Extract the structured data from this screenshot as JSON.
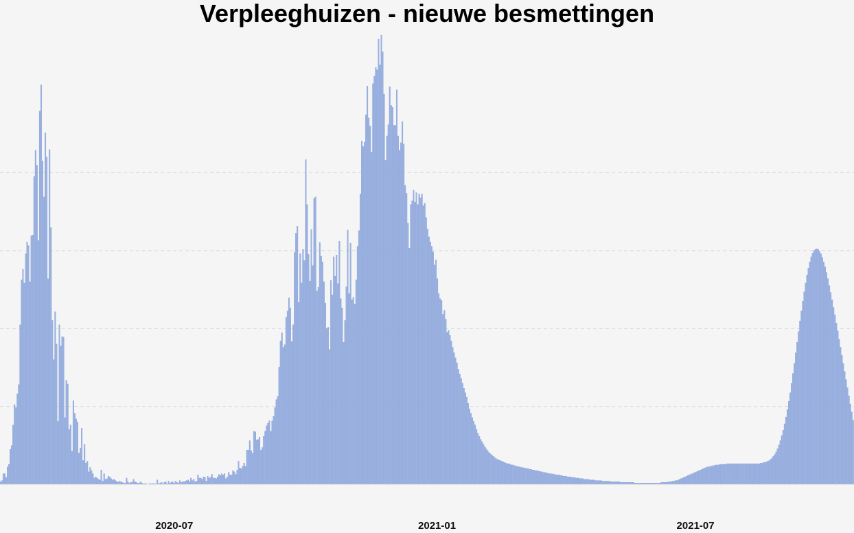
{
  "chart_data": {
    "type": "bar",
    "title": "Verpleeghuizen - nieuwe besmettingen",
    "xlabel": "",
    "ylabel": "",
    "x_start": "2020-03-01",
    "x_end": "2021-10-20",
    "ylim": [
      0,
      700
    ],
    "grid": "horizontal-dashed",
    "bar_color": "#9ab1e1",
    "bar_stroke": "#7e99d4",
    "x_ticks": [
      {
        "date": "2020-07-01",
        "label": "2020-07"
      },
      {
        "date": "2021-01-01",
        "label": "2021-01"
      },
      {
        "date": "2021-07-01",
        "label": "2021-07"
      }
    ],
    "y_gridlines": [
      125,
      250,
      375,
      500
    ],
    "series": [
      {
        "values": [
          4,
          6,
          17,
          17,
          11,
          28,
          32,
          56,
          62,
          95,
          128,
          123,
          145,
          160,
          256,
          328,
          345,
          323,
          370,
          389,
          383,
          325,
          399,
          400,
          494,
          536,
          512,
          391,
          599,
          641,
          519,
          461,
          564,
          525,
          330,
          537,
          412,
          263,
          200,
          277,
          225,
          101,
          256,
          222,
          237,
          236,
          107,
          167,
          161,
          88,
          95,
          53,
          134,
          114,
          105,
          100,
          50,
          58,
          90,
          38,
          64,
          34,
          37,
          20,
          27,
          22,
          17,
          10,
          12,
          10,
          8,
          7,
          23,
          5,
          17,
          8,
          9,
          13,
          12,
          9,
          7,
          8,
          6,
          5,
          3,
          5,
          4,
          3,
          2,
          2,
          10,
          4,
          2,
          3,
          3,
          8,
          4,
          3,
          2,
          2,
          4,
          2,
          1,
          1,
          1,
          0,
          1,
          1,
          1,
          1,
          1,
          1,
          7,
          1,
          2,
          3,
          1,
          3,
          4,
          1,
          5,
          2,
          3,
          4,
          2,
          5,
          3,
          2,
          6,
          3,
          4,
          4,
          5,
          6,
          7,
          4,
          10,
          6,
          8,
          4,
          5,
          15,
          10,
          10,
          8,
          12,
          11,
          5,
          13,
          10,
          11,
          16,
          10,
          10,
          9,
          12,
          16,
          14,
          17,
          15,
          17,
          9,
          12,
          19,
          15,
          15,
          22,
          20,
          16,
          23,
          37,
          26,
          25,
          29,
          34,
          29,
          55,
          55,
          70,
          54,
          50,
          85,
          84,
          71,
          72,
          76,
          55,
          59,
          77,
          85,
          94,
          98,
          102,
          85,
          102,
          109,
          123,
          136,
          141,
          188,
          230,
          243,
          220,
          224,
          268,
          278,
          299,
          283,
          229,
          256,
          372,
          403,
          414,
          292,
          370,
          323,
          377,
          359,
          521,
          449,
          369,
          326,
          409,
          351,
          459,
          461,
          310,
          316,
          388,
          366,
          357,
          325,
          291,
          250,
          252,
          216,
          327,
          304,
          365,
          334,
          368,
          322,
          390,
          298,
          283,
          228,
          263,
          317,
          408,
          306,
          387,
          296,
          300,
          289,
          328,
          382,
          407,
          466,
          551,
          542,
          549,
          593,
          639,
          588,
          575,
          533,
          643,
          655,
          669,
          665,
          714,
          673,
          721,
          694,
          626,
          520,
          559,
          577,
          638,
          608,
          605,
          576,
          576,
          633,
          559,
          536,
          548,
          582,
          546,
          480,
          467,
          419,
          379,
          449,
          455,
          472,
          453,
          468,
          449,
          466,
          460,
          466,
          447,
          451,
          428,
          410,
          397,
          389,
          382,
          373,
          352,
          360,
          330,
          306,
          298,
          295,
          273,
          279,
          265,
          244,
          247,
          239,
          230,
          220,
          211,
          203,
          195,
          185,
          177,
          170,
          162,
          154,
          147,
          140,
          130,
          121,
          114,
          107,
          101,
          95,
          88,
          82,
          77,
          72,
          68,
          64,
          60,
          57,
          54,
          51,
          49,
          47,
          45,
          43,
          41,
          40,
          39,
          38,
          37,
          36,
          35,
          34,
          33,
          33,
          32,
          31,
          31,
          30,
          29,
          29,
          28,
          28,
          27,
          27,
          26,
          26,
          25,
          25,
          24,
          24,
          23,
          23,
          22,
          22,
          21,
          21,
          20,
          20,
          19,
          19,
          18,
          18,
          17,
          17,
          17,
          16,
          16,
          15,
          15,
          15,
          14,
          14,
          13,
          13,
          13,
          12,
          12,
          12,
          11,
          11,
          11,
          10,
          10,
          10,
          9,
          9,
          9,
          8,
          8,
          8,
          8,
          7,
          7,
          7,
          7,
          6,
          6,
          6,
          6,
          6,
          5,
          5,
          5,
          5,
          5,
          5,
          4,
          4,
          4,
          4,
          4,
          4,
          4,
          3,
          3,
          3,
          3,
          3,
          3,
          3,
          3,
          3,
          3,
          2,
          2,
          2,
          2,
          2,
          2,
          2,
          2,
          2,
          2,
          2,
          2,
          2,
          2,
          2,
          2,
          2,
          2,
          2,
          3,
          3,
          3,
          3,
          3,
          4,
          4,
          4,
          5,
          5,
          6,
          6,
          7,
          8,
          9,
          10,
          11,
          12,
          13,
          14,
          15,
          16,
          17,
          18,
          19,
          20,
          21,
          22,
          23,
          24,
          25,
          26,
          27,
          28,
          28,
          29,
          29,
          30,
          30,
          31,
          31,
          31,
          32,
          32,
          32,
          32,
          32,
          33,
          33,
          33,
          33,
          33,
          33,
          33,
          33,
          33,
          33,
          33,
          33,
          33,
          33,
          33,
          33,
          33,
          33,
          33,
          33,
          33,
          33,
          33,
          33,
          34,
          34,
          35,
          35,
          36,
          37,
          38,
          40,
          42,
          45,
          48,
          52,
          57,
          63,
          70,
          78,
          87,
          97,
          108,
          120,
          133,
          147,
          162,
          178,
          194,
          211,
          228,
          245,
          262,
          278,
          294,
          309,
          323,
          336,
          347,
          357,
          365,
          371,
          375,
          377,
          378,
          377,
          374,
          370,
          364,
          357,
          349,
          340,
          330,
          319,
          308,
          296,
          284,
          272,
          259,
          246,
          233,
          220,
          207,
          194,
          181,
          168,
          155,
          142,
          129,
          116,
          103
        ]
      }
    ]
  }
}
